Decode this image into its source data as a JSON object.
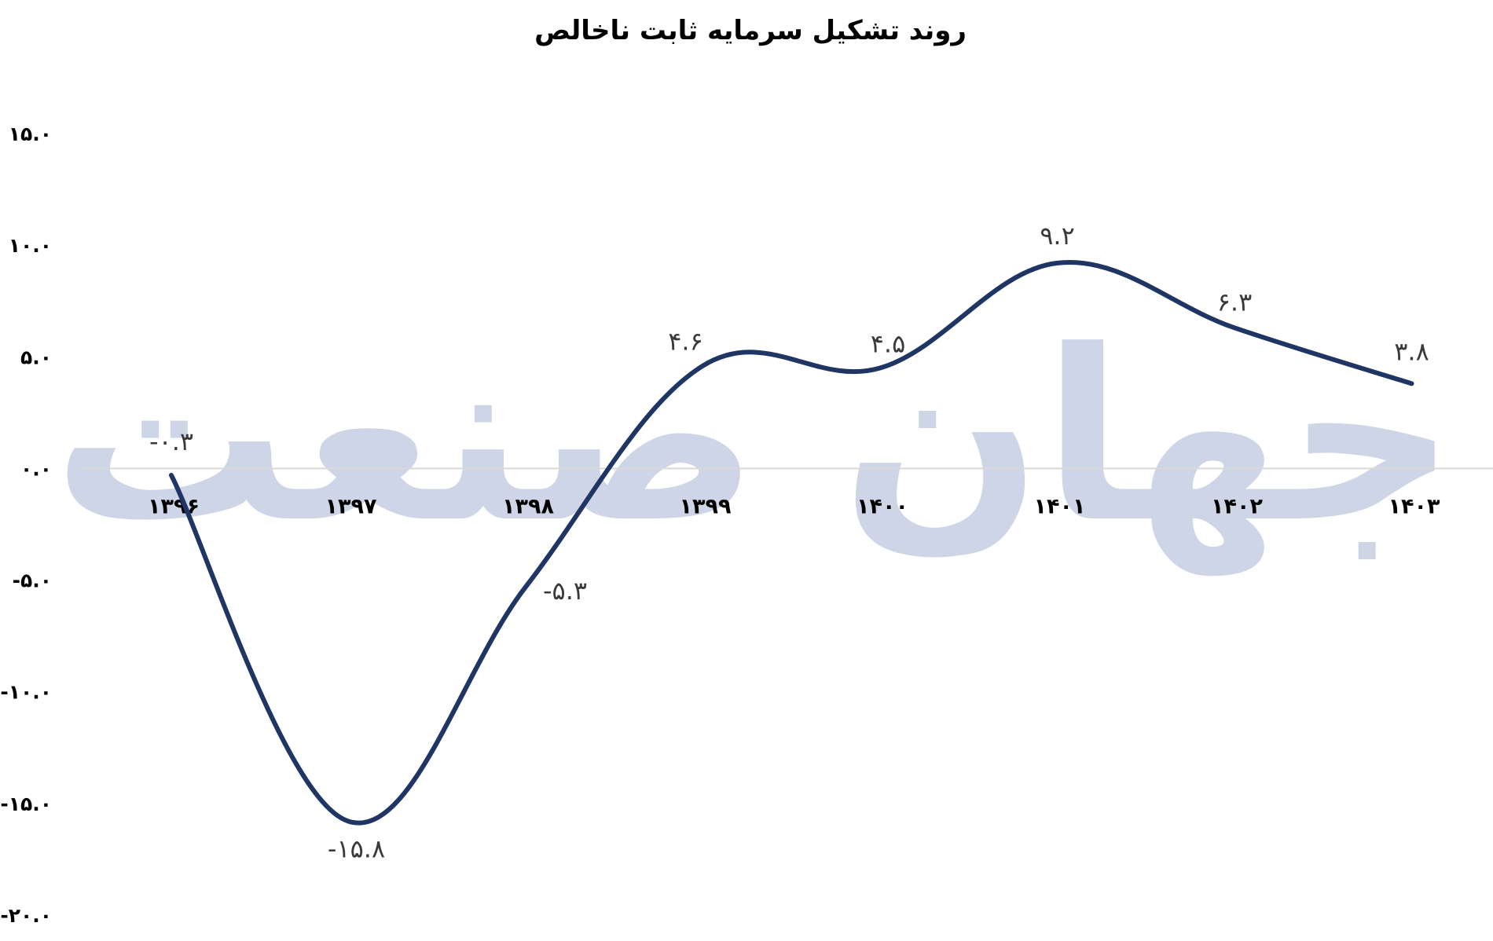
{
  "chart_data": {
    "type": "line",
    "title": "روند تشکیل سرمایه ثابت ناخالص",
    "categories": [
      "۱۳۹۶",
      "۱۳۹۷",
      "۱۳۹۸",
      "۱۳۹۹",
      "۱۴۰۰",
      "۱۴۰۱",
      "۱۴۰۲",
      "۱۴۰۳"
    ],
    "values": [
      -0.3,
      -15.8,
      -5.3,
      4.6,
      4.5,
      9.2,
      6.3,
      3.8
    ],
    "data_labels": [
      "-۰.۳",
      "-۱۵.۸",
      "-۵.۳",
      "۴.۶",
      "۴.۵",
      "۹.۲",
      "۶.۳",
      "۳.۸"
    ],
    "y_ticks": [
      15,
      10,
      5,
      0,
      -5,
      -10,
      -15,
      -20
    ],
    "y_tick_labels": [
      "۱۵.۰",
      "۱۰.۰",
      "۵.۰",
      "۰.۰",
      "-۵.۰",
      "-۱۰.۰",
      "-۱۵.۰",
      "-۲۰.۰"
    ],
    "ylim": [
      -20,
      15
    ],
    "xlabel": "",
    "ylabel": "",
    "grid": false,
    "legend": "none",
    "line_color": "#1f3563",
    "smooth": true
  },
  "watermark": {
    "text": "جهان صنعت",
    "color": "#cdd5e6"
  }
}
